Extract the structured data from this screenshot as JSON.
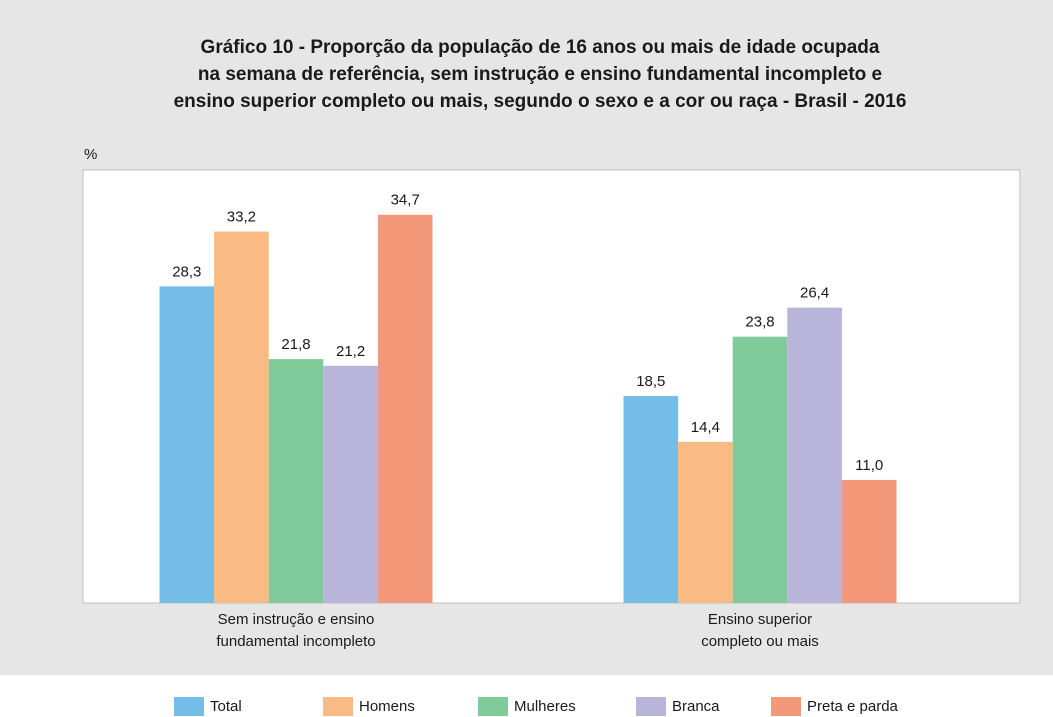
{
  "chart_data": {
    "type": "bar",
    "title": [
      "Gráfico 10 - Proporção da população de 16 anos ou mais de idade ocupada",
      "na semana de referência, sem instrução e ensino fundamental incompleto e",
      "ensino superior completo ou mais, segundo o sexo e a cor ou raça - Brasil - 2016"
    ],
    "y_label": "%",
    "categories": [
      [
        "Sem instrução e ensino",
        "fundamental incompleto"
      ],
      [
        "Ensino superior",
        "completo ou mais"
      ]
    ],
    "series": [
      {
        "name": "Total",
        "color": "#74bde8",
        "values": [
          28.3,
          18.5
        ],
        "value_labels": [
          "28,3",
          "18,5"
        ]
      },
      {
        "name": "Homens",
        "color": "#f9bb83",
        "values": [
          33.2,
          14.4
        ],
        "value_labels": [
          "33,2",
          "14,4"
        ]
      },
      {
        "name": "Mulheres",
        "color": "#80cb99",
        "values": [
          21.8,
          23.8
        ],
        "value_labels": [
          "21,8",
          "23,8"
        ]
      },
      {
        "name": "Branca",
        "color": "#b9b4da",
        "values": [
          21.2,
          26.4
        ],
        "value_labels": [
          "21,2",
          "26,4"
        ]
      },
      {
        "name": "Preta e parda",
        "color": "#f4987a",
        "values": [
          34.7,
          11.0
        ],
        "value_labels": [
          "34,7",
          "11,0"
        ]
      }
    ],
    "ylim": [
      0,
      38.7
    ],
    "grid": false,
    "legend": "bottom"
  }
}
